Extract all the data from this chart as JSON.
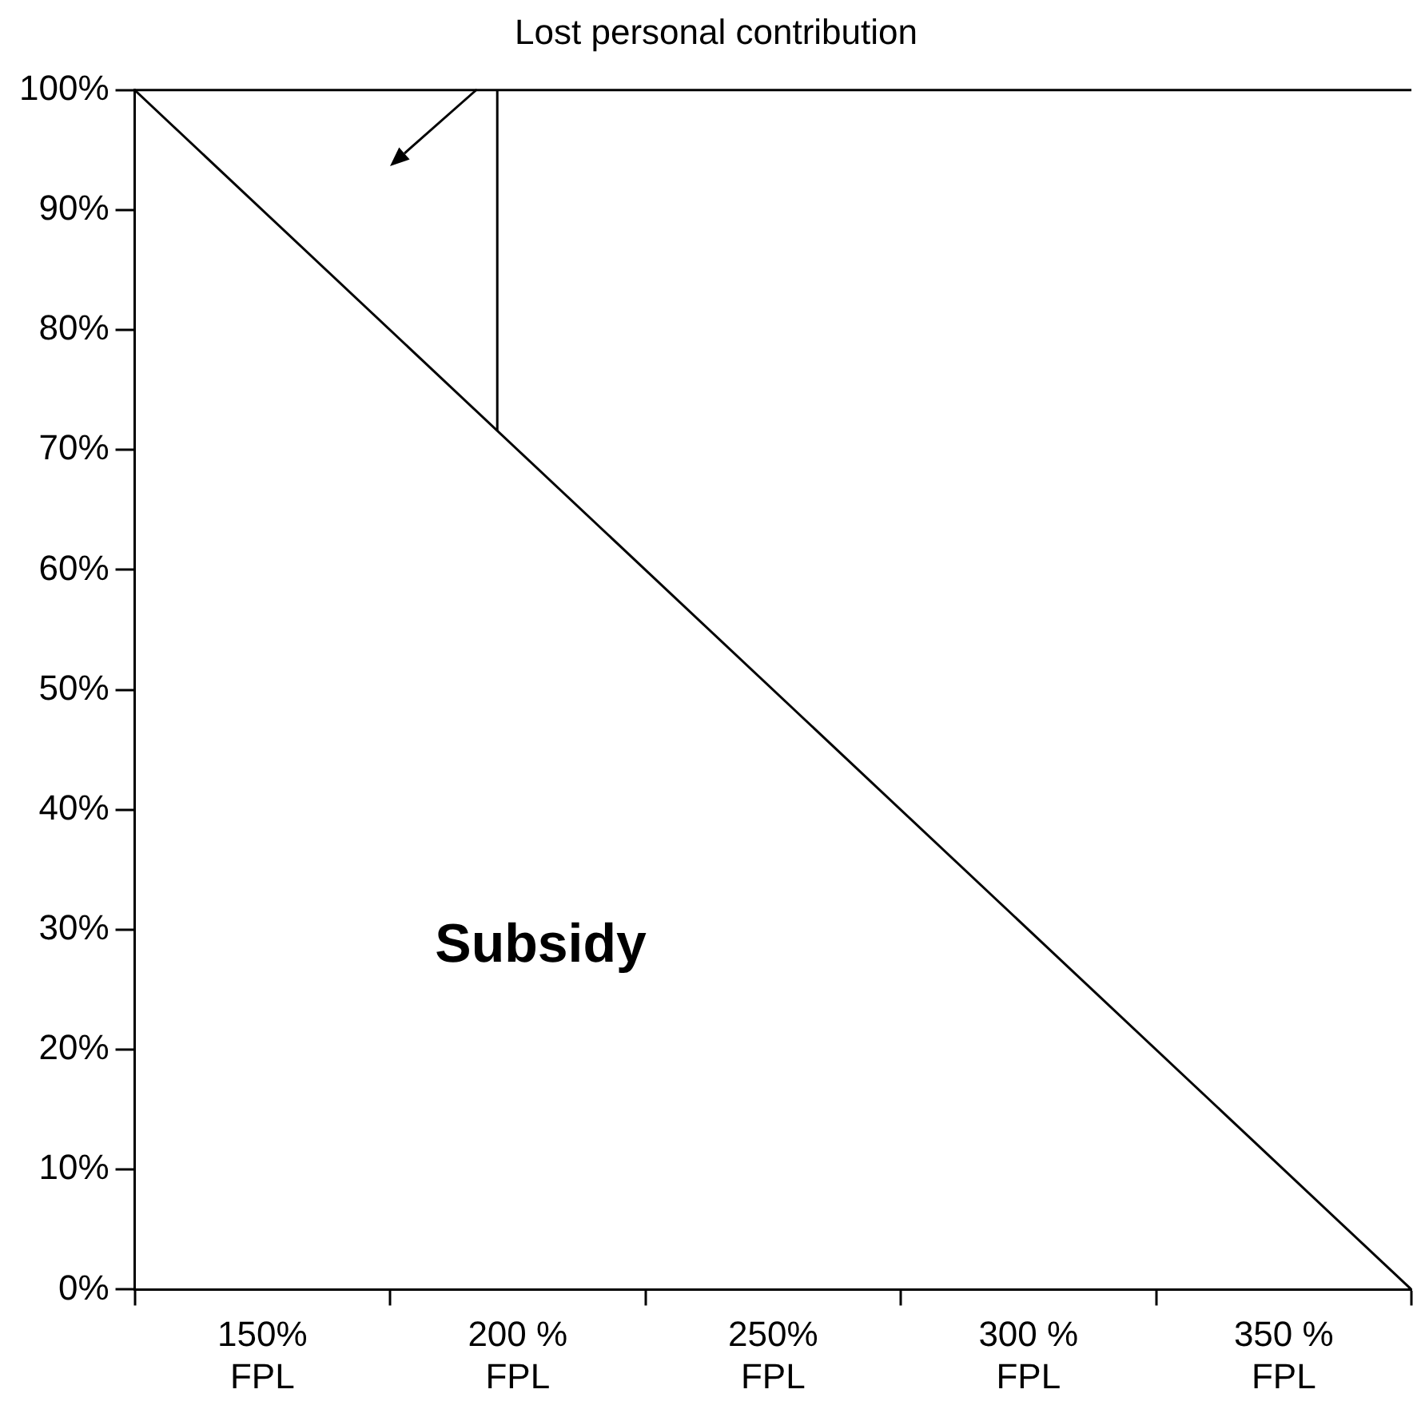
{
  "chart_data": {
    "type": "line",
    "title": "Lost personal contribution",
    "xlim": [
      125,
      375
    ],
    "xticks": [
      {
        "value": 125,
        "label": null
      },
      {
        "value": 150,
        "label": "150% FPL"
      },
      {
        "value": 175,
        "label": null
      },
      {
        "value": 200,
        "label": "200 % FPL"
      },
      {
        "value": 225,
        "label": null
      },
      {
        "value": 250,
        "label": "250% FPL"
      },
      {
        "value": 275,
        "label": null
      },
      {
        "value": 300,
        "label": "300 % FPL"
      },
      {
        "value": 325,
        "label": null
      },
      {
        "value": 350,
        "label": "350 % FPL"
      },
      {
        "value": 375,
        "label": null
      }
    ],
    "ylim": [
      0,
      100
    ],
    "yticks": [
      {
        "value": 0,
        "label": "0%"
      },
      {
        "value": 10,
        "label": "10%"
      },
      {
        "value": 20,
        "label": "20%"
      },
      {
        "value": 30,
        "label": "30%"
      },
      {
        "value": 40,
        "label": "40%"
      },
      {
        "value": 50,
        "label": "50%"
      },
      {
        "value": 60,
        "label": "60%"
      },
      {
        "value": 70,
        "label": "70%"
      },
      {
        "value": 80,
        "label": "80%"
      },
      {
        "value": 90,
        "label": "90%"
      },
      {
        "value": 100,
        "label": "100%"
      }
    ],
    "series": [
      {
        "color": "#000000",
        "x": [
          125,
          375
        ],
        "values": [
          100,
          0
        ]
      },
      {
        "color": "#000000",
        "x": [
          196,
          196
        ],
        "values": [
          71.6,
          100
        ]
      }
    ],
    "annotations": [
      "Subsidy"
    ],
    "grid": false,
    "legend": false,
    "marker": "none",
    "line_style": "solid"
  }
}
